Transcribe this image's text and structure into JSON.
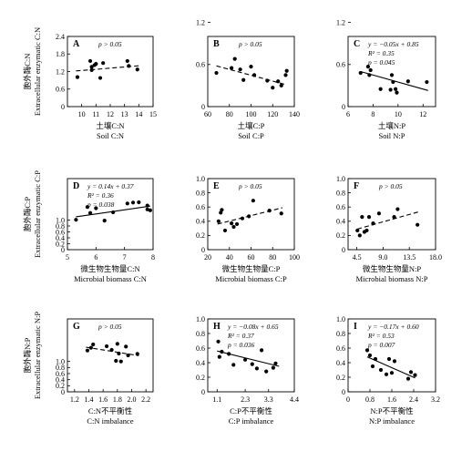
{
  "rows": [
    {
      "ylabel_cn": "胞外酶C:N",
      "ylabel_en": "Extracellular enzymatic C:N",
      "ylim": [
        0,
        2.4
      ],
      "yticks": [
        0,
        0.6,
        1.2,
        1.8,
        2.4
      ],
      "ytick_labels": [
        "0",
        "0.6",
        "1.2",
        "1.8",
        "2.4"
      ]
    },
    {
      "ylabel_cn": "胞外酶C:P",
      "ylabel_en": "Extracellular enzymatic C:P",
      "ylim": [
        0,
        1.0
      ],
      "yticks": [
        0,
        0.2,
        0.4,
        0.6,
        0.8,
        1.0
      ],
      "ytick_labels": [
        "0",
        "0.2",
        "0.4",
        "0.6",
        "0.8",
        "1.0"
      ]
    },
    {
      "ylabel_cn": "胞外酶N:P",
      "ylabel_en": "Extracellular enzymatic N:P",
      "ylim": [
        0,
        1.0
      ],
      "yticks": [
        0,
        0.2,
        0.4,
        0.6,
        0.8,
        1.0
      ],
      "ytick_labels": [
        "0",
        "0.2",
        "0.4",
        "0.6",
        "0.8",
        "1.0"
      ]
    }
  ],
  "chart_data": [
    {
      "panel": "A",
      "type": "scatter",
      "xlabel_cn": "土壤C:N",
      "xlabel_en": "Soil C:N",
      "xlim": [
        9,
        15
      ],
      "xticks": [
        10,
        11,
        12,
        13,
        14,
        15
      ],
      "xtick_labels": [
        "10",
        "11",
        "12",
        "13",
        "14",
        "15"
      ],
      "ylim": [
        0,
        2.4
      ],
      "points": [
        [
          9.7,
          1.01
        ],
        [
          10.6,
          1.56
        ],
        [
          10.7,
          1.36
        ],
        [
          10.7,
          1.25
        ],
        [
          10.9,
          1.42
        ],
        [
          11.0,
          1.46
        ],
        [
          11.3,
          0.98
        ],
        [
          11.5,
          1.49
        ],
        [
          13.2,
          1.56
        ],
        [
          13.3,
          1.39
        ],
        [
          13.9,
          1.27
        ]
      ],
      "trend": {
        "style": "dashed",
        "x": [
          9.6,
          14.1
        ],
        "y": [
          1.22,
          1.4
        ]
      },
      "annotation": [
        "p > 0.05"
      ]
    },
    {
      "panel": "D",
      "type": "scatter",
      "xlabel_cn": "微生物生物量C:N",
      "xlabel_en": "Microbial biomass C:N",
      "xlim": [
        5,
        8
      ],
      "xticks": [
        5,
        6,
        7,
        8
      ],
      "xtick_labels": [
        "5",
        "6",
        "7",
        "8"
      ],
      "ylim": [
        0,
        2.4
      ],
      "points": [
        [
          5.3,
          1.01
        ],
        [
          5.7,
          1.44
        ],
        [
          5.8,
          1.24
        ],
        [
          6.0,
          1.4
        ],
        [
          6.3,
          0.98
        ],
        [
          6.6,
          1.26
        ],
        [
          7.1,
          1.56
        ],
        [
          7.3,
          1.59
        ],
        [
          7.5,
          1.6
        ],
        [
          7.8,
          1.49
        ],
        [
          7.8,
          1.36
        ],
        [
          7.9,
          1.33
        ]
      ],
      "trend": {
        "style": "solid",
        "x": [
          5.3,
          7.9
        ],
        "y": [
          1.11,
          1.47
        ]
      },
      "annotation": [
        "y = 0.14x + 0.37",
        "R² = 0.36",
        "p = 0.038"
      ]
    },
    {
      "panel": "G",
      "type": "scatter",
      "xlabel_cn": "C:N不平衡性",
      "xlabel_en": "C:N imbalance",
      "xlim": [
        1.1,
        2.3
      ],
      "xticks": [
        1.2,
        1.4,
        1.6,
        1.8,
        2.0,
        2.2
      ],
      "xtick_labels": [
        "1.2",
        "1.4",
        "1.6",
        "1.8",
        "2.0",
        "2.2"
      ],
      "ylim": [
        0,
        2.4
      ],
      "points": [
        [
          1.38,
          1.36
        ],
        [
          1.43,
          1.45
        ],
        [
          1.46,
          1.56
        ],
        [
          1.65,
          1.5
        ],
        [
          1.72,
          1.38
        ],
        [
          1.78,
          1.02
        ],
        [
          1.8,
          1.58
        ],
        [
          1.82,
          1.26
        ],
        [
          1.85,
          1.0
        ],
        [
          1.92,
          1.49
        ],
        [
          1.95,
          1.2
        ],
        [
          2.08,
          1.25
        ]
      ],
      "trend": {
        "style": "dashed",
        "x": [
          1.36,
          2.1
        ],
        "y": [
          1.47,
          1.19
        ]
      },
      "annotation": [
        "p > 0.05"
      ]
    },
    {
      "panel": "B",
      "type": "scatter",
      "xlabel_cn": "土壤C:P",
      "xlabel_en": "Soil C:P",
      "xlim": [
        60,
        140
      ],
      "xticks": [
        60,
        80,
        100,
        120,
        140
      ],
      "xtick_labels": [
        "60",
        "80",
        "100",
        "120",
        "140"
      ],
      "ylim": [
        0,
        1.0
      ],
      "points": [
        [
          68,
          0.48
        ],
        [
          82,
          0.55
        ],
        [
          85,
          0.68
        ],
        [
          90,
          0.53
        ],
        [
          93,
          0.38
        ],
        [
          100,
          0.57
        ],
        [
          103,
          0.45
        ],
        [
          115,
          0.37
        ],
        [
          120,
          0.27
        ],
        [
          125,
          0.36
        ],
        [
          128,
          0.3
        ],
        [
          132,
          0.45
        ],
        [
          133,
          0.51
        ]
      ],
      "trend": {
        "style": "dashed",
        "x": [
          68,
          133
        ],
        "y": [
          0.58,
          0.31
        ]
      },
      "annotation": [
        "p > 0.05"
      ]
    },
    {
      "panel": "E",
      "type": "scatter",
      "xlabel_cn": "微生物生物量C:P",
      "xlabel_en": "Microbial biomass C:P",
      "xlim": [
        20,
        100
      ],
      "xticks": [
        20,
        40,
        60,
        80,
        100
      ],
      "xtick_labels": [
        "20",
        "40",
        "60",
        "80",
        "100"
      ],
      "ylim": [
        0,
        1.0
      ],
      "points": [
        [
          30,
          0.4
        ],
        [
          32,
          0.52
        ],
        [
          33,
          0.56
        ],
        [
          36,
          0.27
        ],
        [
          42,
          0.37
        ],
        [
          44,
          0.32
        ],
        [
          47,
          0.36
        ],
        [
          52,
          0.44
        ],
        [
          58,
          0.47
        ],
        [
          62,
          0.69
        ],
        [
          77,
          0.55
        ],
        [
          88,
          0.51
        ]
      ],
      "trend": {
        "style": "dashed",
        "x": [
          29,
          89
        ],
        "y": [
          0.36,
          0.59
        ]
      },
      "annotation": [
        "p > 0.05"
      ]
    },
    {
      "panel": "H",
      "type": "scatter",
      "xlabel_cn": "C:P不平衡性",
      "xlabel_en": "C:P imbalance",
      "xlim": [
        0.7,
        4.4
      ],
      "xticks": [
        1.1,
        2.3,
        3.3,
        4.4
      ],
      "xtick_labels": [
        "1.1",
        "2.3",
        "3.3",
        "4.4"
      ],
      "ylim": [
        0,
        1.0
      ],
      "points": [
        [
          1.15,
          0.69
        ],
        [
          1.2,
          0.48
        ],
        [
          1.3,
          0.55
        ],
        [
          1.6,
          0.52
        ],
        [
          1.8,
          0.37
        ],
        [
          2.3,
          0.44
        ],
        [
          2.6,
          0.38
        ],
        [
          2.8,
          0.32
        ],
        [
          3.0,
          0.57
        ],
        [
          3.2,
          0.28
        ],
        [
          3.5,
          0.33
        ],
        [
          3.6,
          0.39
        ]
      ],
      "trend": {
        "style": "solid",
        "x": [
          1.1,
          3.75
        ],
        "y": [
          0.56,
          0.35
        ]
      },
      "annotation": [
        "y = −0.08x + 0.65",
        "R² = 0.37",
        "p = 0.036"
      ]
    },
    {
      "panel": "C",
      "type": "scatter",
      "xlabel_cn": "土壤N:P",
      "xlabel_en": "Soil N:P",
      "xlim": [
        6,
        13
      ],
      "xticks": [
        6,
        8,
        10,
        12
      ],
      "xtick_labels": [
        "6",
        "8",
        "10",
        "12"
      ],
      "ylim": [
        0,
        1.0
      ],
      "points": [
        [
          7.0,
          0.48
        ],
        [
          7.6,
          0.57
        ],
        [
          7.7,
          0.45
        ],
        [
          7.8,
          0.52
        ],
        [
          8.6,
          0.25
        ],
        [
          9.4,
          0.24
        ],
        [
          9.5,
          0.45
        ],
        [
          9.6,
          0.35
        ],
        [
          9.8,
          0.25
        ],
        [
          9.9,
          0.2
        ],
        [
          10.8,
          0.36
        ],
        [
          12.3,
          0.35
        ]
      ],
      "trend": {
        "style": "solid",
        "x": [
          7.0,
          12.4
        ],
        "y": [
          0.5,
          0.23
        ]
      },
      "annotation": [
        "y = −0.05x + 0.85",
        "R² = 0.35",
        "p = 0.045"
      ]
    },
    {
      "panel": "F",
      "type": "scatter",
      "xlabel_cn": "微生物生物量N:P",
      "xlabel_en": "Microbial biomass N:P",
      "xlim": [
        3,
        18
      ],
      "xticks": [
        4.5,
        9.0,
        13.5,
        18.0
      ],
      "xtick_labels": [
        "4.5",
        "9.0",
        "13.5",
        "18.0"
      ],
      "ylim": [
        0,
        1.0
      ],
      "points": [
        [
          4.6,
          0.27
        ],
        [
          5.0,
          0.2
        ],
        [
          5.4,
          0.46
        ],
        [
          5.8,
          0.25
        ],
        [
          6.2,
          0.27
        ],
        [
          6.6,
          0.46
        ],
        [
          7.3,
          0.37
        ],
        [
          8.3,
          0.51
        ],
        [
          10.9,
          0.46
        ],
        [
          11.5,
          0.57
        ],
        [
          14.9,
          0.35
        ]
      ],
      "trend": {
        "style": "dashed",
        "x": [
          4.6,
          15.0
        ],
        "y": [
          0.29,
          0.53
        ]
      },
      "annotation": [
        "p > 0.05"
      ]
    },
    {
      "panel": "I",
      "type": "scatter",
      "xlabel_cn": "N:P不平衡性",
      "xlabel_en": "N:P imbalance",
      "xlim": [
        0,
        3.2
      ],
      "xticks": [
        0,
        0.8,
        1.6,
        2.4,
        3.2
      ],
      "xtick_labels": [
        "0",
        "0.8",
        "1.6",
        "2.4",
        "3.2"
      ],
      "ylim": [
        0,
        1.0
      ],
      "points": [
        [
          0.7,
          0.57
        ],
        [
          0.8,
          0.5
        ],
        [
          0.9,
          0.35
        ],
        [
          1.0,
          0.45
        ],
        [
          1.2,
          0.3
        ],
        [
          1.4,
          0.24
        ],
        [
          1.5,
          0.45
        ],
        [
          1.6,
          0.26
        ],
        [
          1.7,
          0.42
        ],
        [
          2.2,
          0.18
        ],
        [
          2.3,
          0.27
        ],
        [
          2.45,
          0.23
        ]
      ],
      "trend": {
        "style": "solid",
        "x": [
          0.7,
          2.45
        ],
        "y": [
          0.48,
          0.19
        ]
      },
      "annotation": [
        "y = −0.17x + 0.60",
        "R² = 0.53",
        "p = 0.007"
      ]
    }
  ]
}
